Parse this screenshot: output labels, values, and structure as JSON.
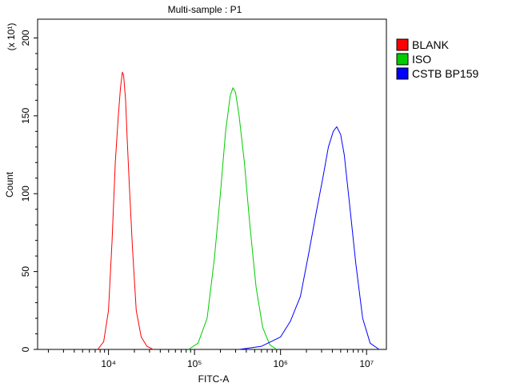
{
  "chart_data": {
    "type": "line",
    "title": "Multi-sample : P1",
    "xlabel": "FITC-A",
    "ylabel": "Count",
    "y_multiplier": "(x 10¹)",
    "x_scale": "log",
    "xlim": [
      1500,
      17000000
    ],
    "ylim": [
      0,
      210
    ],
    "x_ticks": [
      {
        "value": 10000,
        "label": "10⁴"
      },
      {
        "value": 100000,
        "label": "10⁵"
      },
      {
        "value": 1000000,
        "label": "10⁶"
      },
      {
        "value": 10000000,
        "label": "10⁷"
      }
    ],
    "y_ticks": [
      0,
      50,
      100,
      150,
      200
    ],
    "grid": false,
    "legend_position": "right",
    "series": [
      {
        "name": "BLANK",
        "color": "#ff0000",
        "x": [
          7500,
          8800,
          10000,
          11000,
          12000,
          13000,
          13800,
          14500,
          15000,
          15800,
          16500,
          17500,
          19000,
          21000,
          24000,
          28000,
          33000
        ],
        "y": [
          0,
          5,
          25,
          70,
          120,
          150,
          168,
          178,
          176,
          160,
          135,
          105,
          65,
          25,
          8,
          2,
          0
        ]
      },
      {
        "name": "ISO",
        "color": "#00cc00",
        "x": [
          85000,
          110000,
          140000,
          170000,
          200000,
          230000,
          260000,
          280000,
          300000,
          330000,
          380000,
          440000,
          520000,
          620000,
          750000,
          900000
        ],
        "y": [
          0,
          4,
          20,
          58,
          100,
          140,
          163,
          168,
          165,
          150,
          120,
          80,
          40,
          14,
          3,
          0
        ]
      },
      {
        "name": "CSTB BP159",
        "color": "#0000ff",
        "x": [
          330000,
          600000,
          1000000,
          1300000,
          1700000,
          2100000,
          2600000,
          3100000,
          3600000,
          4100000,
          4500000,
          5000000,
          5500000,
          6300000,
          7500000,
          9000000,
          11000000,
          14000000
        ],
        "y": [
          0,
          2,
          8,
          18,
          34,
          60,
          88,
          110,
          130,
          140,
          143,
          138,
          125,
          95,
          55,
          20,
          4,
          0
        ]
      }
    ]
  }
}
